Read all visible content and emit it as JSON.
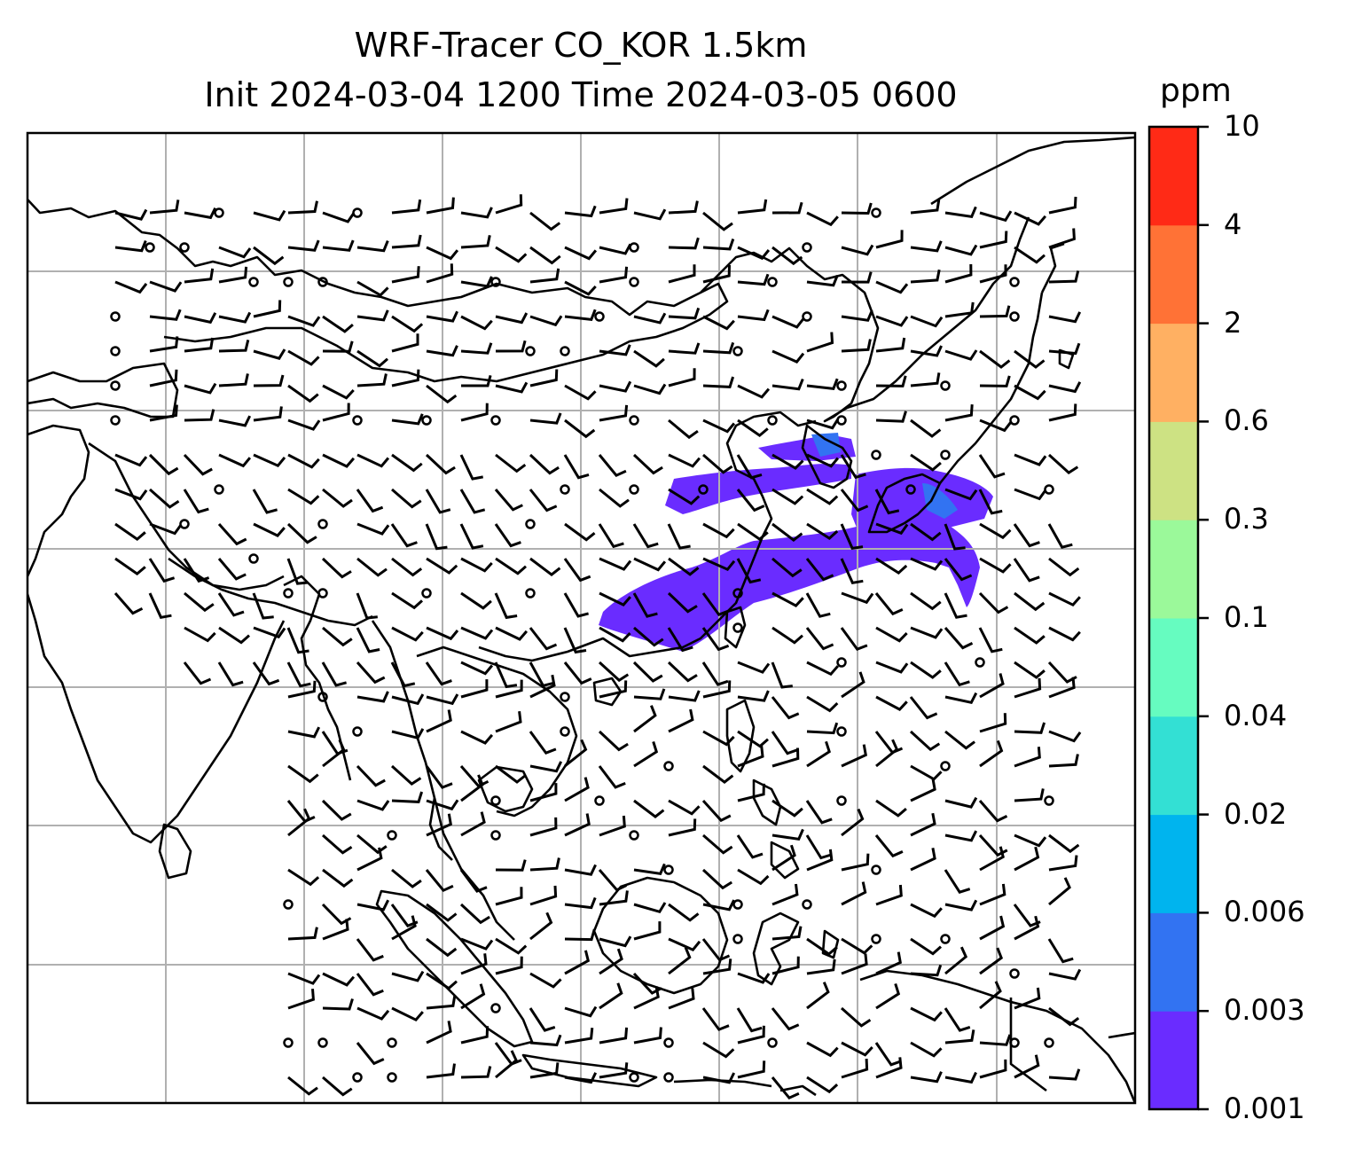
{
  "title": {
    "line1": "WRF-Tracer CO_KOR 1.5km",
    "line2": "Init 2024-03-04 1200 Time 2024-03-05 0600"
  },
  "colorbar": {
    "unit": "ppm",
    "levels": [
      "0.001",
      "0.003",
      "0.006",
      "0.02",
      "0.04",
      "0.1",
      "0.3",
      "0.6",
      "2",
      "4",
      "10"
    ],
    "colors": [
      "#6a2cff",
      "#3273f2",
      "#00b4ee",
      "#33e0d4",
      "#66fcc0",
      "#9bf99a",
      "#cde283",
      "#ffb062",
      "#ff7236",
      "#ff2a16"
    ]
  },
  "map": {
    "features": [
      "coastlines",
      "country-borders",
      "lat-lon-gridlines",
      "wind-barbs",
      "co-tracer-plume"
    ],
    "plume_color": "#6a2cff",
    "plume_core_color": "#3273f2",
    "line_color": "#000000",
    "grid_color": "#b0b0b0"
  }
}
